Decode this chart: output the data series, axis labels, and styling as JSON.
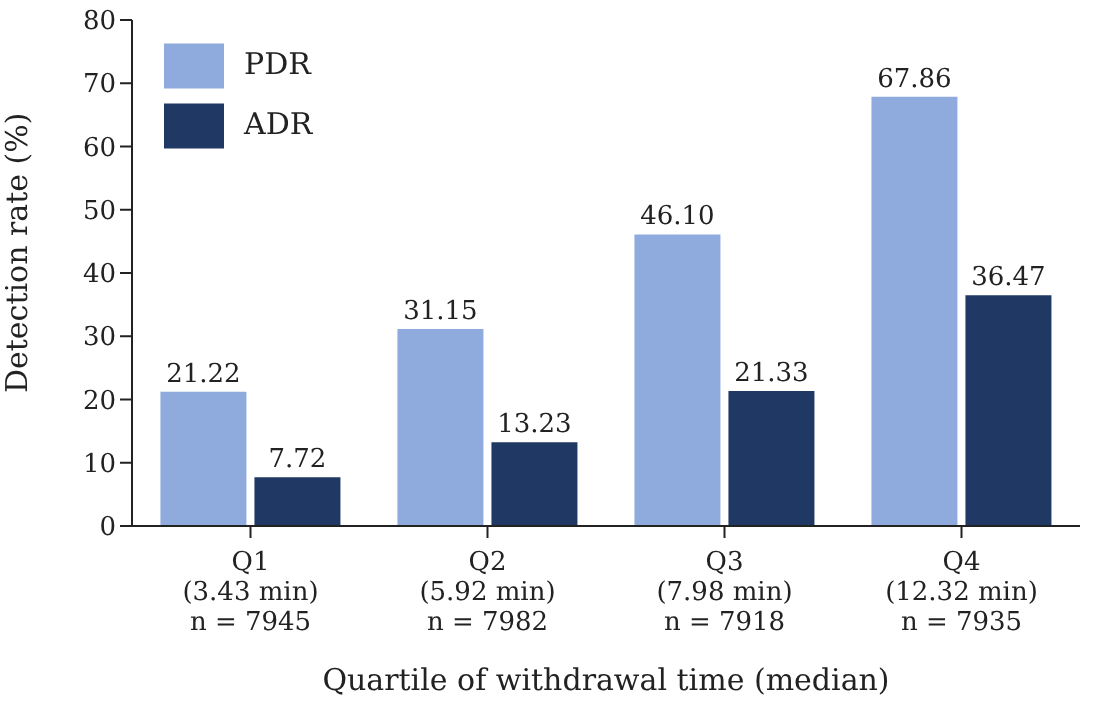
{
  "chart_data": {
    "type": "bar",
    "xlabel": "Quartile of withdrawal time (median)",
    "ylabel": "Detection rate (%)",
    "categories": [
      "Q1\n(3.43 min)\nn = 7945",
      "Q2\n(5.92 min)\nn = 7982",
      "Q3\n(7.98 min)\nn = 7918",
      "Q4\n(12.32 min)\nn = 7935"
    ],
    "series": [
      {
        "name": "PDR",
        "color": "#8faadc",
        "values": [
          21.22,
          31.15,
          46.1,
          67.86
        ],
        "value_labels": [
          "21.22",
          "31.15",
          "46.10",
          "67.86"
        ]
      },
      {
        "name": "ADR",
        "color": "#1f3864",
        "values": [
          7.72,
          13.23,
          21.33,
          36.47
        ],
        "value_labels": [
          "7.72",
          "13.23",
          "21.33",
          "36.47"
        ]
      }
    ],
    "ylim": [
      0,
      80
    ],
    "yticks": [
      0,
      10,
      20,
      30,
      40,
      50,
      60,
      70,
      80
    ],
    "grid": false,
    "legend": "top left"
  }
}
